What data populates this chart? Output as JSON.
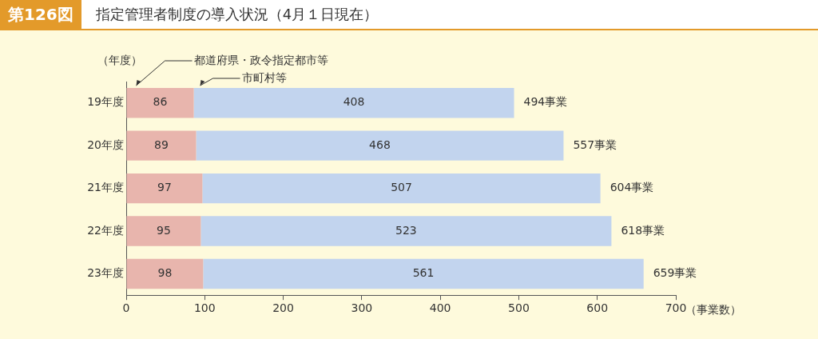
{
  "chart_data": {
    "type": "bar",
    "orientation": "horizontal",
    "stacked": true,
    "title": "第126図",
    "subtitle": "指定管理者制度の導入状況（4月１日現在）",
    "ylabel": "（年度）",
    "xlabel": "（事業数）",
    "categories": [
      "19年度",
      "20年度",
      "21年度",
      "22年度",
      "23年度"
    ],
    "series": [
      {
        "name": "都道府県・政令指定都市等",
        "color": "#e8b5ad",
        "values": [
          86,
          89,
          97,
          95,
          98
        ]
      },
      {
        "name": "市町村等",
        "color": "#c2d4ee",
        "values": [
          408,
          468,
          507,
          523,
          561
        ]
      }
    ],
    "totals": [
      "494事業",
      "557事業",
      "604事業",
      "618事業",
      "659事業"
    ],
    "data_labels": true,
    "legend": false,
    "grid": false,
    "xlim": [
      0,
      700
    ],
    "xticks": [
      0,
      100,
      200,
      300,
      400,
      500,
      600,
      700
    ]
  }
}
